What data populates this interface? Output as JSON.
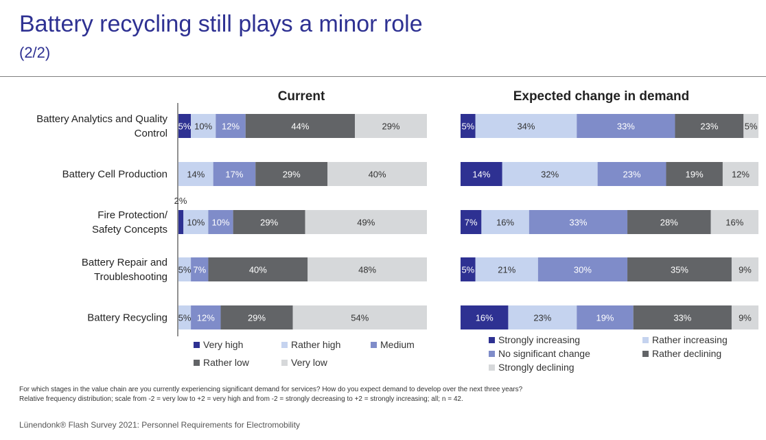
{
  "header": {
    "title": "Battery recycling still plays a minor role",
    "subtitle": "(2/2)"
  },
  "footnote": {
    "line1": "For which stages in the value chain are you currently experiencing significant demand for services? How do you expect demand to develop over the next three years?",
    "line2": "Relative frequency distribution; scale from -2 = very low to +2 = very high and from -2 = strongly decreasing to +2 = strongly increasing; all; n = 42."
  },
  "source": "Lünendonk® Flash Survey 2021: Personnel Requirements for Electromobility",
  "chart_data": [
    {
      "type": "bar",
      "stacked": true,
      "orientation": "horizontal",
      "title": "Current",
      "categories": [
        "Battery Analytics and Quality Control",
        "Battery Cell Production",
        "Fire Protection/ Safety Concepts",
        "Battery Repair and Troubleshooting",
        "Battery Recycling"
      ],
      "xlim": [
        0,
        100
      ],
      "legend_position": "bottom",
      "series": [
        {
          "name": "Very high",
          "color": "#2e3192",
          "text_color": "#ffffff",
          "values": [
            5,
            0,
            2,
            0,
            0
          ],
          "labels": [
            "5%",
            "",
            "2%",
            "",
            ""
          ]
        },
        {
          "name": "Rather high",
          "color": "#c5d3ef",
          "text_color": "#333333",
          "values": [
            10,
            14,
            10,
            5,
            5
          ],
          "labels": [
            "10%",
            "14%",
            "10%",
            "5%",
            "5%"
          ]
        },
        {
          "name": "Medium",
          "color": "#7f8cc9",
          "text_color": "#ffffff",
          "values": [
            12,
            17,
            10,
            7,
            12
          ],
          "labels": [
            "12%",
            "17%",
            "10%",
            "7%",
            "12%"
          ]
        },
        {
          "name": "Rather low",
          "color": "#626467",
          "text_color": "#ffffff",
          "values": [
            44,
            29,
            29,
            40,
            29
          ],
          "labels": [
            "44%",
            "29%",
            "29%",
            "40%",
            "29%"
          ]
        },
        {
          "name": "Very low",
          "color": "#d6d8da",
          "text_color": "#333333",
          "values": [
            29,
            40,
            49,
            48,
            54
          ],
          "labels": [
            "29%",
            "40%",
            "49%",
            "48%",
            "54%"
          ]
        }
      ]
    },
    {
      "type": "bar",
      "stacked": true,
      "orientation": "horizontal",
      "title": "Expected change in demand",
      "categories": [
        "Battery Analytics and Quality Control",
        "Battery Cell Production",
        "Fire Protection/ Safety Concepts",
        "Battery Repair and Troubleshooting",
        "Battery Recycling"
      ],
      "xlim": [
        0,
        100
      ],
      "legend_position": "bottom",
      "series": [
        {
          "name": "Strongly increasing",
          "color": "#2e3192",
          "text_color": "#ffffff",
          "values": [
            5,
            14,
            7,
            5,
            16
          ],
          "labels": [
            "5%",
            "14%",
            "7%",
            "5%",
            "16%"
          ]
        },
        {
          "name": "Rather increasing",
          "color": "#c5d3ef",
          "text_color": "#333333",
          "values": [
            34,
            32,
            16,
            21,
            23
          ],
          "labels": [
            "34%",
            "32%",
            "16%",
            "21%",
            "23%"
          ]
        },
        {
          "name": "No significant change",
          "color": "#7f8cc9",
          "text_color": "#ffffff",
          "values": [
            33,
            23,
            33,
            30,
            19
          ],
          "labels": [
            "33%",
            "23%",
            "33%",
            "30%",
            "19%"
          ]
        },
        {
          "name": "Rather declining",
          "color": "#626467",
          "text_color": "#ffffff",
          "values": [
            23,
            19,
            28,
            35,
            33
          ],
          "labels": [
            "23%",
            "19%",
            "28%",
            "35%",
            "33%"
          ]
        },
        {
          "name": "Strongly declining",
          "color": "#d6d8da",
          "text_color": "#333333",
          "values": [
            5,
            12,
            16,
            9,
            9
          ],
          "labels": [
            "5%",
            "12%",
            "16%",
            "9%",
            "9%"
          ]
        }
      ]
    }
  ]
}
